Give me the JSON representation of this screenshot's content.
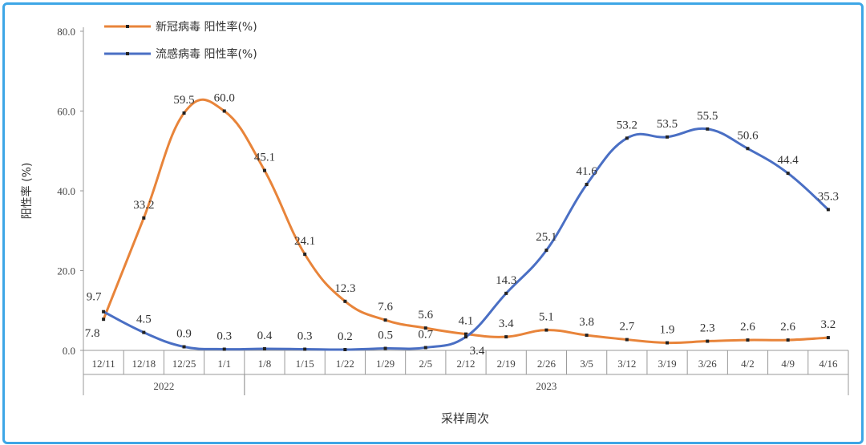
{
  "chart_data": {
    "type": "line",
    "title": "",
    "xlabel": "采样周次",
    "ylabel": "阳性率 (%)",
    "ylim": [
      0,
      80
    ],
    "yticks": [
      "0.0",
      "20.0",
      "40.0",
      "60.0",
      "80.0"
    ],
    "categories": [
      "12/11",
      "12/18",
      "12/25",
      "1/1",
      "1/8",
      "1/15",
      "1/22",
      "1/29",
      "2/5",
      "2/12",
      "2/19",
      "2/26",
      "3/5",
      "3/12",
      "3/19",
      "3/26",
      "4/2",
      "4/9",
      "4/16"
    ],
    "year_groups": [
      {
        "label": "2022",
        "count": 4
      },
      {
        "label": "2023",
        "count": 15
      }
    ],
    "legend_position": "top-left",
    "series": [
      {
        "name": "新冠病毒 阳性率(%)",
        "color": "#e8843a",
        "values": [
          7.8,
          33.2,
          59.5,
          60.0,
          45.1,
          24.1,
          12.3,
          7.6,
          5.6,
          4.1,
          3.4,
          5.1,
          3.8,
          2.7,
          1.9,
          2.3,
          2.6,
          2.6,
          3.2
        ]
      },
      {
        "name": "流感病毒 阳性率(%)",
        "color": "#4a6fc4",
        "values": [
          9.7,
          4.5,
          0.9,
          0.3,
          0.4,
          0.3,
          0.2,
          0.5,
          0.7,
          3.4,
          14.3,
          25.1,
          41.6,
          53.2,
          53.5,
          55.5,
          50.6,
          44.4,
          35.3
        ]
      }
    ]
  }
}
